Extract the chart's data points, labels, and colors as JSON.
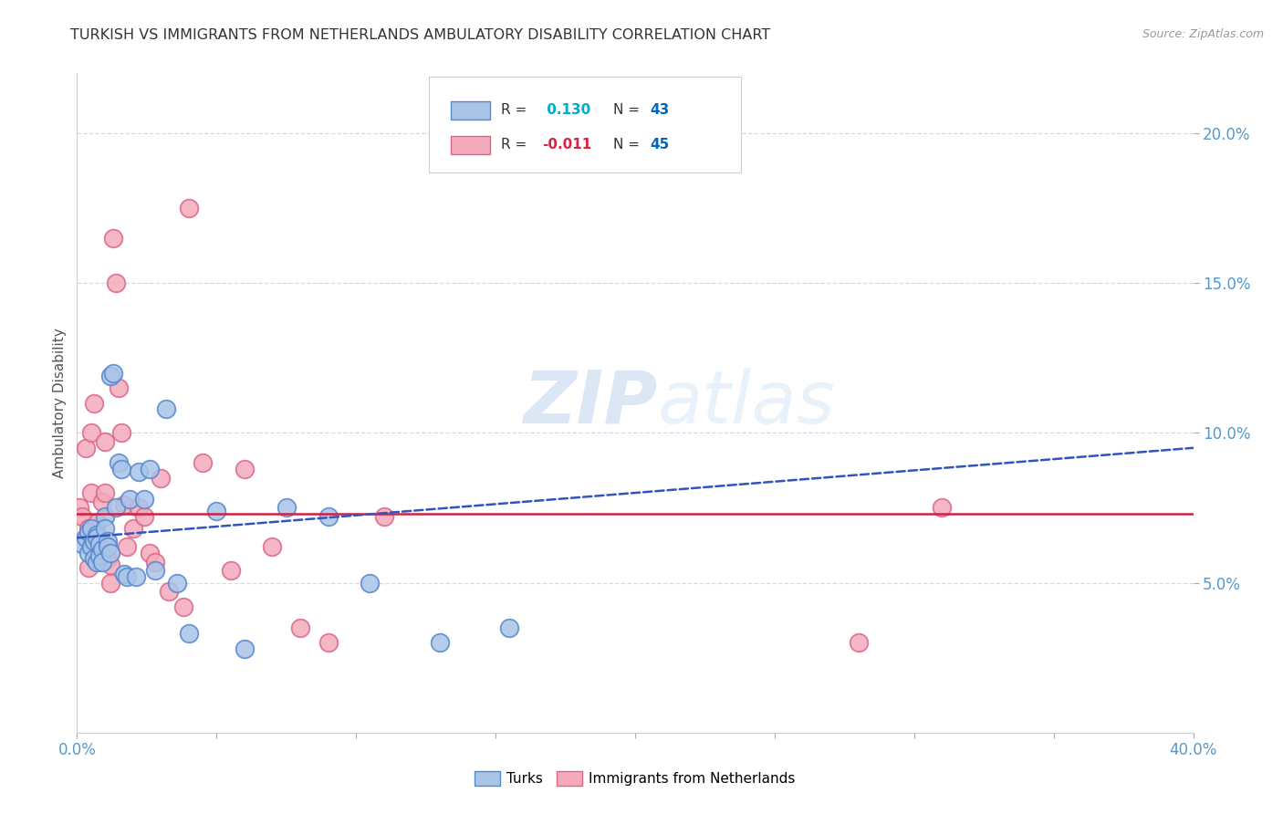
{
  "title": "TURKISH VS IMMIGRANTS FROM NETHERLANDS AMBULATORY DISABILITY CORRELATION CHART",
  "source": "Source: ZipAtlas.com",
  "ylabel": "Ambulatory Disability",
  "xlim": [
    0.0,
    0.4
  ],
  "ylim": [
    0.0,
    0.22
  ],
  "yticks": [
    0.05,
    0.1,
    0.15,
    0.2
  ],
  "ytick_labels": [
    "5.0%",
    "10.0%",
    "15.0%",
    "20.0%"
  ],
  "xticks": [
    0.0,
    0.05,
    0.1,
    0.15,
    0.2,
    0.25,
    0.3,
    0.35,
    0.4
  ],
  "xtick_labels": [
    "0.0%",
    "",
    "",
    "",
    "",
    "",
    "",
    "",
    "40.0%"
  ],
  "background_color": "#ffffff",
  "grid_color": "#d8d8e8",
  "turks_color": "#aac4e8",
  "turks_edge_color": "#5588cc",
  "immigrants_color": "#f4aabb",
  "immigrants_edge_color": "#dd6688",
  "turks_R": 0.13,
  "turks_N": 43,
  "immigrants_R": -0.011,
  "immigrants_N": 45,
  "turks_line_color": "#3355bb",
  "immigrants_line_color": "#cc2244",
  "watermark_zip": "ZIP",
  "watermark_atlas": "atlas",
  "title_color": "#333333",
  "axis_label_color": "#555555",
  "tick_color": "#5599cc",
  "turks_x": [
    0.002,
    0.003,
    0.004,
    0.004,
    0.005,
    0.005,
    0.006,
    0.006,
    0.007,
    0.007,
    0.007,
    0.008,
    0.008,
    0.009,
    0.009,
    0.01,
    0.01,
    0.011,
    0.011,
    0.012,
    0.012,
    0.013,
    0.014,
    0.015,
    0.016,
    0.017,
    0.018,
    0.019,
    0.021,
    0.022,
    0.024,
    0.026,
    0.028,
    0.032,
    0.036,
    0.04,
    0.05,
    0.06,
    0.075,
    0.09,
    0.105,
    0.13,
    0.155
  ],
  "turks_y": [
    0.063,
    0.065,
    0.067,
    0.06,
    0.062,
    0.068,
    0.058,
    0.064,
    0.066,
    0.057,
    0.065,
    0.059,
    0.063,
    0.061,
    0.057,
    0.072,
    0.068,
    0.064,
    0.062,
    0.06,
    0.119,
    0.12,
    0.075,
    0.09,
    0.088,
    0.053,
    0.052,
    0.078,
    0.052,
    0.087,
    0.078,
    0.088,
    0.054,
    0.108,
    0.05,
    0.033,
    0.074,
    0.028,
    0.075,
    0.072,
    0.05,
    0.03,
    0.035
  ],
  "immigrants_x": [
    0.001,
    0.002,
    0.003,
    0.003,
    0.004,
    0.004,
    0.005,
    0.005,
    0.006,
    0.006,
    0.007,
    0.007,
    0.008,
    0.008,
    0.009,
    0.01,
    0.01,
    0.011,
    0.011,
    0.012,
    0.012,
    0.013,
    0.014,
    0.015,
    0.016,
    0.017,
    0.018,
    0.02,
    0.022,
    0.024,
    0.026,
    0.028,
    0.03,
    0.033,
    0.038,
    0.04,
    0.045,
    0.055,
    0.06,
    0.07,
    0.08,
    0.09,
    0.11,
    0.28,
    0.31
  ],
  "immigrants_y": [
    0.075,
    0.072,
    0.065,
    0.095,
    0.055,
    0.068,
    0.08,
    0.1,
    0.11,
    0.065,
    0.06,
    0.07,
    0.062,
    0.058,
    0.077,
    0.08,
    0.097,
    0.058,
    0.062,
    0.056,
    0.05,
    0.165,
    0.15,
    0.115,
    0.1,
    0.076,
    0.062,
    0.068,
    0.075,
    0.072,
    0.06,
    0.057,
    0.085,
    0.047,
    0.042,
    0.175,
    0.09,
    0.054,
    0.088,
    0.062,
    0.035,
    0.03,
    0.072,
    0.03,
    0.075
  ]
}
